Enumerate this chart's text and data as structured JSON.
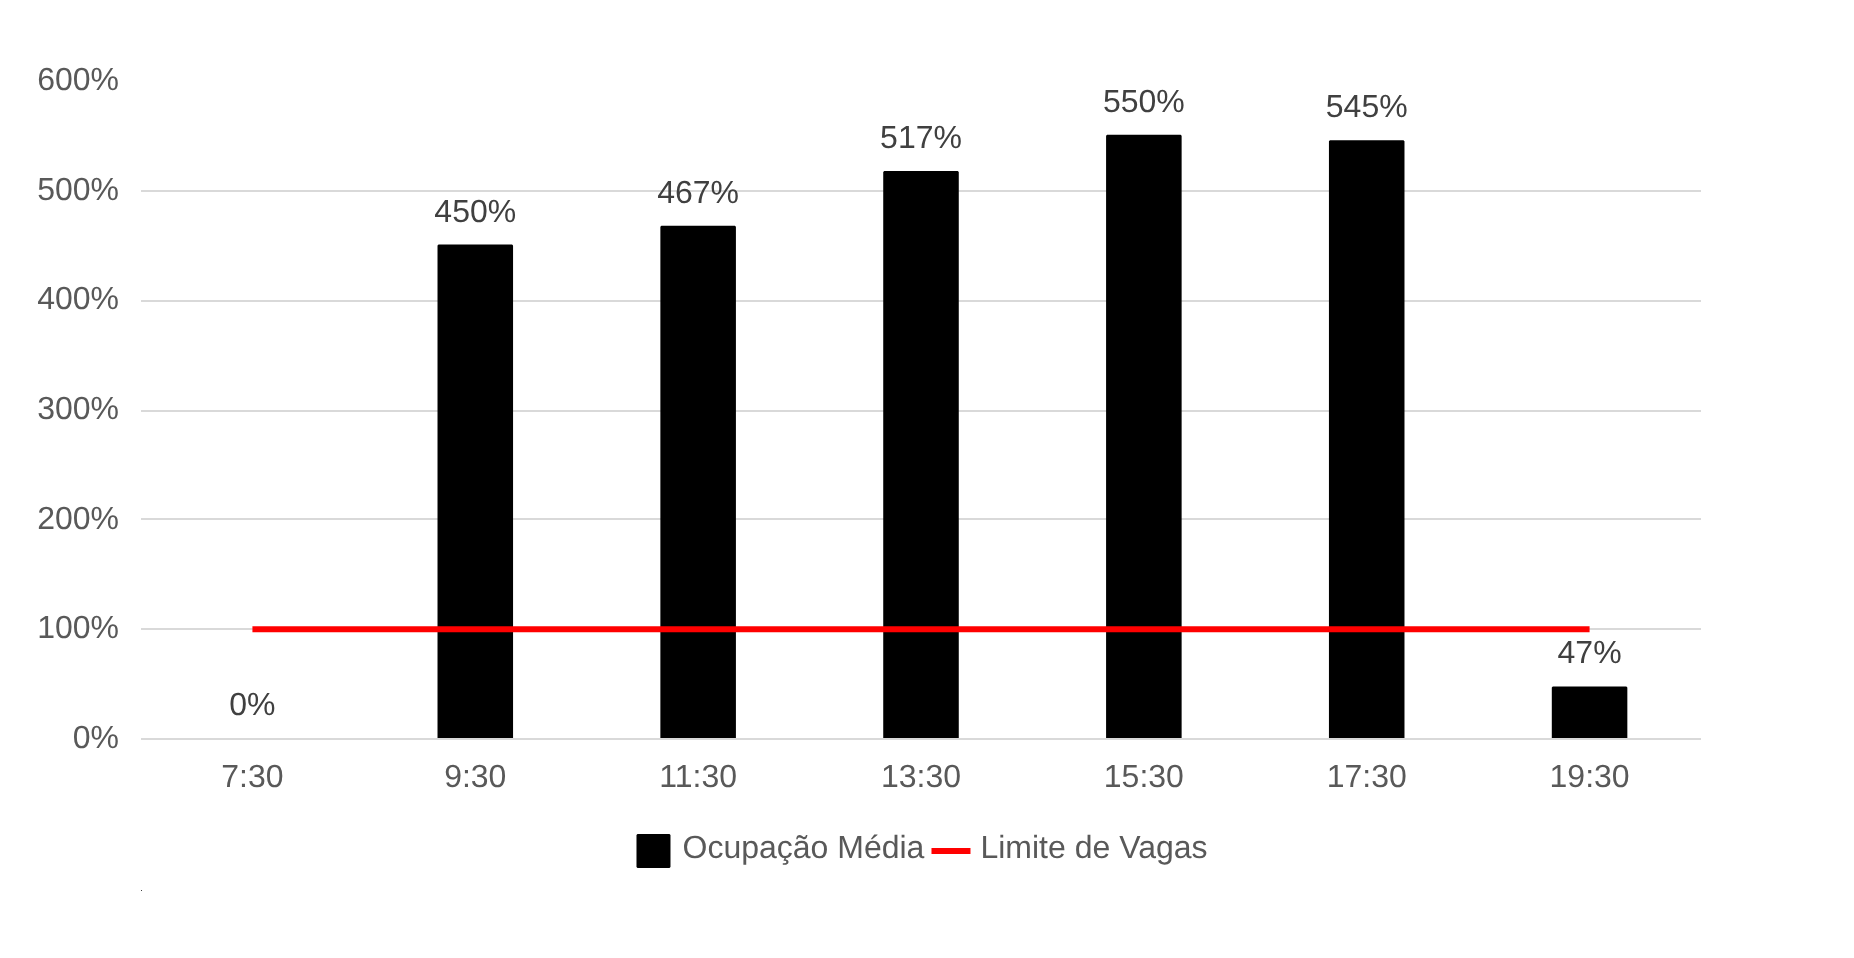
{
  "chart_data": {
    "type": "bar",
    "categories": [
      "7:30",
      "9:30",
      "11:30",
      "13:30",
      "15:30",
      "17:30",
      "19:30"
    ],
    "series": [
      {
        "name": "Ocupação Média",
        "color": "#000000",
        "values": [
          0,
          450,
          467,
          517,
          550,
          545,
          47
        ],
        "value_labels": [
          "0%",
          "450%",
          "467%",
          "517%",
          "550%",
          "545%",
          "47%"
        ]
      },
      {
        "name": "Limite de Vagas",
        "type": "line",
        "color": "#ff0000",
        "values": [
          100,
          100,
          100,
          100,
          100,
          100,
          100
        ]
      }
    ],
    "ylim": [
      0,
      600
    ],
    "yticks": [
      {
        "value": 0,
        "label": "0%"
      },
      {
        "value": 100,
        "label": "100%"
      },
      {
        "value": 200,
        "label": "200%"
      },
      {
        "value": 300,
        "label": "300%"
      },
      {
        "value": 400,
        "label": "400%"
      },
      {
        "value": 500,
        "label": "500%"
      },
      {
        "value": 600,
        "label": "600%"
      }
    ],
    "grid": "y",
    "legend": "bottom"
  }
}
